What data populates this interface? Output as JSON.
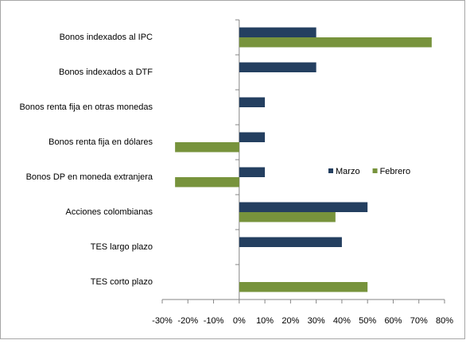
{
  "chart_data": {
    "type": "hbar",
    "categories": [
      "Bonos indexados al IPC",
      "Bonos indexados a DTF",
      "Bonos renta fija en otras monedas",
      "Bonos renta fija en dólares",
      "Bonos DP en moneda extranjera",
      "Acciones colombianas",
      "TES largo plazo",
      "TES corto plazo"
    ],
    "series": [
      {
        "name": "Marzo",
        "color": "#243f60",
        "values": [
          30,
          30,
          10,
          10,
          10,
          50,
          40,
          null
        ]
      },
      {
        "name": "Febrero",
        "color": "#77933c",
        "values": [
          75,
          null,
          null,
          -25,
          -25,
          37.5,
          null,
          50
        ]
      }
    ],
    "xlim": [
      -30,
      80
    ],
    "xticks": [
      {
        "value": -30,
        "label": "-30%"
      },
      {
        "value": -20,
        "label": "-20%"
      },
      {
        "value": -10,
        "label": "-10%"
      },
      {
        "value": 0,
        "label": "0%"
      },
      {
        "value": 10,
        "label": "10%"
      },
      {
        "value": 20,
        "label": "20%"
      },
      {
        "value": 30,
        "label": "30%"
      },
      {
        "value": 40,
        "label": "40%"
      },
      {
        "value": 50,
        "label": "50%"
      },
      {
        "value": 60,
        "label": "60%"
      },
      {
        "value": 70,
        "label": "70%"
      },
      {
        "value": 80,
        "label": "80%"
      }
    ],
    "grid": false
  }
}
